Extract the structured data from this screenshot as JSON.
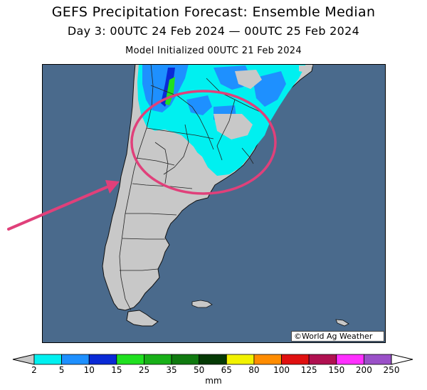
{
  "header": {
    "title": "GEFS Precipitation Forecast: Ensemble Median",
    "period": "Day 3: 00UTC 24 Feb 2024 — 00UTC 25 Feb 2024",
    "init": "Model Initialized 00UTC 21 Feb 2024"
  },
  "map": {
    "credit": "©World Ag Weather",
    "ocean_color": "#4a6a8c",
    "land_color": "#c8c8c8",
    "highlight_color": "#e0407a",
    "annotation": "circle-and-arrow"
  },
  "colorbar": {
    "units": "mm",
    "ticks": [
      "2",
      "5",
      "10",
      "15",
      "25",
      "35",
      "50",
      "65",
      "80",
      "100",
      "125",
      "150",
      "200",
      "250"
    ],
    "colors": [
      "#00f0f0",
      "#1e90ff",
      "#0a2ad6",
      "#20e020",
      "#18b018",
      "#107a10",
      "#053a05",
      "#f2f200",
      "#ff8c00",
      "#e01010",
      "#b01050",
      "#ff30ff",
      "#9a50c8"
    ],
    "under_color": "#c8c8c8",
    "over_color": "#ffffff"
  }
}
